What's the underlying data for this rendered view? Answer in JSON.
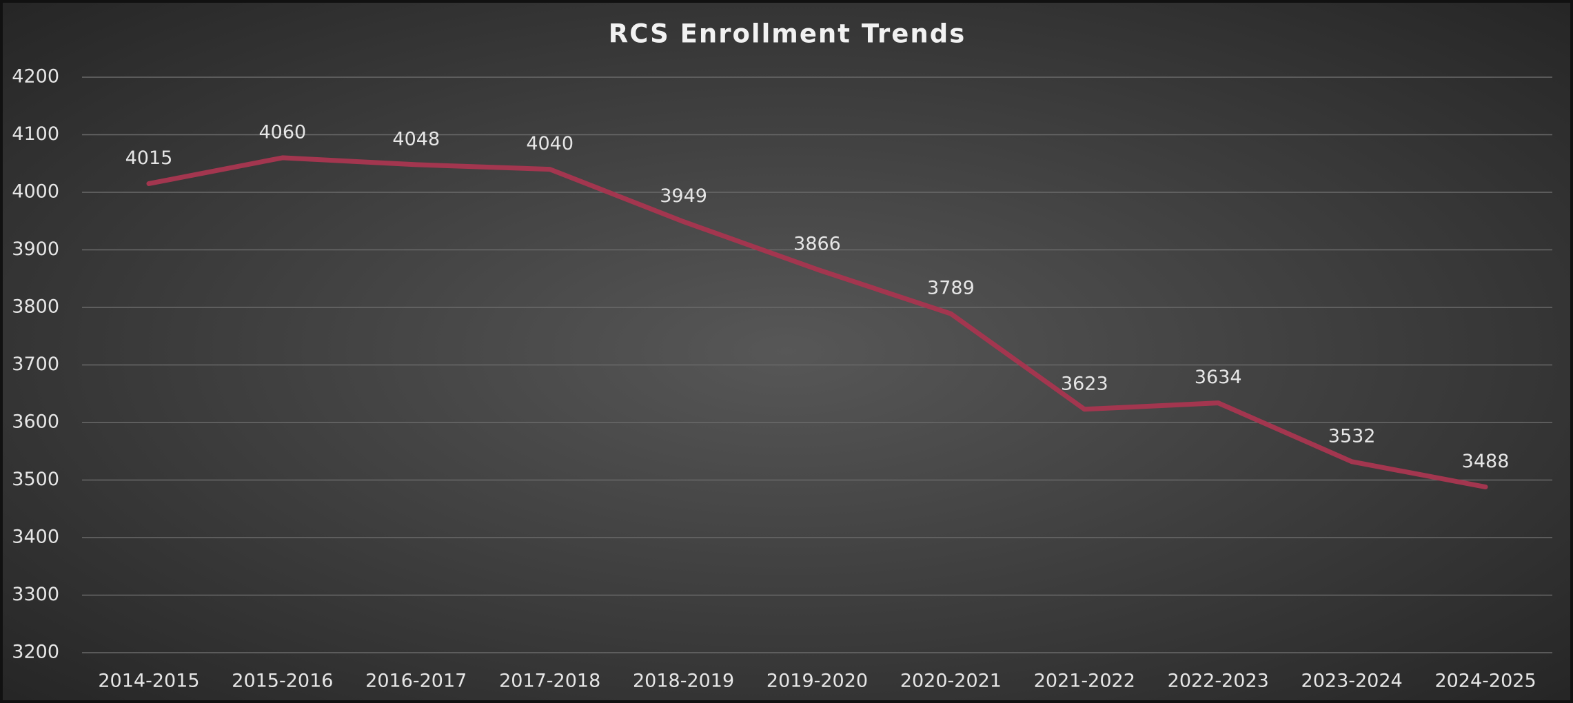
{
  "chart_data": {
    "type": "line",
    "title": "RCS Enrollment Trends",
    "categories": [
      "2014-2015",
      "2015-2016",
      "2016-2017",
      "2017-2018",
      "2018-2019",
      "2019-2020",
      "2020-2021",
      "2021-2022",
      "2022-2023",
      "2023-2024",
      "2024-2025"
    ],
    "values": [
      4015,
      4060,
      4048,
      4040,
      3949,
      3866,
      3789,
      3623,
      3634,
      3532,
      3488
    ],
    "color": "#a3364f",
    "ylim": [
      3200,
      4200
    ],
    "yticks": [
      3200,
      3300,
      3400,
      3500,
      3600,
      3700,
      3800,
      3900,
      4000,
      4100,
      4200
    ],
    "grid": true
  }
}
